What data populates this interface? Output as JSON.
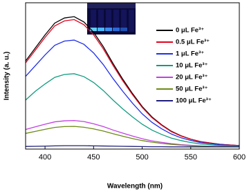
{
  "chart_data": {
    "type": "line",
    "x_label": "Wavelength (nm)",
    "y_label": "Intensity (a. u.)",
    "x": [
      380,
      390,
      400,
      410,
      420,
      430,
      440,
      450,
      460,
      470,
      480,
      490,
      500,
      510,
      520,
      530,
      540,
      550,
      560,
      570,
      580,
      590,
      600
    ],
    "xlim": [
      380,
      600
    ],
    "xticks": [
      400,
      450,
      500,
      550,
      600
    ],
    "ylim": [
      0,
      100
    ],
    "legend": "upper right",
    "series": [
      {
        "name": "0 μL Fe³⁺",
        "color": "#000000",
        "values": [
          60.2,
          69.1,
          78.0,
          86.1,
          89.6,
          90.5,
          86.9,
          79.8,
          70.0,
          58.5,
          47.8,
          38.0,
          29.1,
          22.0,
          16.6,
          12.2,
          9.1,
          6.8,
          5.1,
          4.2,
          3.3,
          2.8,
          2.4
        ]
      },
      {
        "name": "0.5 μL Fe³⁺",
        "color": "#e3001b",
        "values": [
          58.9,
          67.6,
          76.3,
          84.2,
          87.6,
          88.5,
          85.0,
          78.1,
          68.5,
          57.2,
          46.7,
          37.2,
          28.5,
          21.5,
          16.3,
          11.9,
          8.9,
          6.7,
          5.0,
          4.1,
          3.2,
          2.8,
          2.4
        ]
      },
      {
        "name": "1 μL Fe³⁺",
        "color": "#1f2ee8",
        "values": [
          49.7,
          57.0,
          64.3,
          70.9,
          73.8,
          74.5,
          71.6,
          65.7,
          57.7,
          48.2,
          39.5,
          31.4,
          24.1,
          18.3,
          13.9,
          10.3,
          7.7,
          5.9,
          4.4,
          3.7,
          3.0,
          2.6,
          2.2
        ]
      },
      {
        "name": "10 μL Fe³⁺",
        "color": "#0f9b80",
        "values": [
          33.5,
          39.5,
          44.5,
          49.0,
          51.0,
          51.5,
          49.5,
          45.5,
          40.0,
          33.5,
          27.5,
          22.0,
          17.0,
          13.0,
          10.0,
          7.5,
          5.8,
          4.5,
          3.5,
          3.0,
          2.5,
          2.3,
          2.0
        ]
      },
      {
        "name": "20 μL Fe³⁺",
        "color": "#c23fe0",
        "values": [
          13.4,
          15.2,
          17.0,
          18.6,
          19.3,
          19.5,
          18.8,
          17.3,
          15.4,
          13.0,
          10.9,
          8.9,
          7.1,
          5.6,
          4.6,
          3.7,
          3.0,
          2.6,
          2.2,
          2.0,
          1.9,
          1.8,
          1.7
        ]
      },
      {
        "name": "50 μL Fe³⁺",
        "color": "#6b8a13",
        "values": [
          10.7,
          12.1,
          13.5,
          14.8,
          15.4,
          15.5,
          14.9,
          13.8,
          12.3,
          10.5,
          8.8,
          7.2,
          5.8,
          4.7,
          3.9,
          3.2,
          2.7,
          2.3,
          2.1,
          1.9,
          1.8,
          1.7,
          1.6
        ]
      },
      {
        "name": "100 μL Fe³⁺",
        "color": "#1c1c7a",
        "values": [
          1.8,
          1.9,
          2.0,
          2.2,
          2.3,
          2.3,
          2.3,
          2.2,
          2.1,
          2.0,
          1.9,
          1.8,
          1.7,
          1.6,
          1.6,
          1.5,
          1.5,
          1.5,
          1.5,
          1.5,
          1.5,
          1.5,
          1.5
        ]
      }
    ]
  }
}
